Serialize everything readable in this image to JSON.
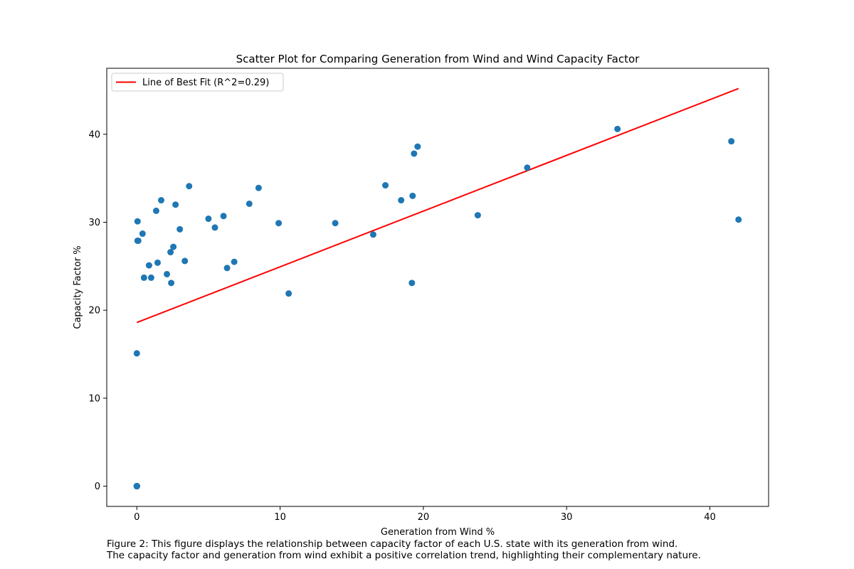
{
  "chart_data": {
    "type": "scatter",
    "title": "Scatter Plot for Comparing Generation from Wind and Wind Capacity Factor",
    "xlabel": "Generation from Wind %",
    "ylabel": "Capacity Factor %",
    "xlim": [
      -2.1,
      44.1
    ],
    "ylim": [
      -2.3,
      47.5
    ],
    "xticks": [
      0,
      10,
      20,
      30,
      40
    ],
    "yticks": [
      0,
      10,
      20,
      30,
      40
    ],
    "grid": false,
    "legend_placement": "upper-left",
    "points": {
      "color": "#1f77b4",
      "x": [
        0,
        0,
        0,
        0,
        0,
        0,
        0,
        0,
        0,
        0,
        0.05,
        0.05,
        0.1,
        0.4,
        0.5,
        0.85,
        1.0,
        1.35,
        1.45,
        1.7,
        2.1,
        2.35,
        2.4,
        2.55,
        2.7,
        3.0,
        3.35,
        3.65,
        5.0,
        5.45,
        6.05,
        6.3,
        6.8,
        7.85,
        8.5,
        9.9,
        10.6,
        13.85,
        16.5,
        17.35,
        18.45,
        19.2,
        19.25,
        19.35,
        19.6,
        23.8,
        27.25,
        33.55,
        41.5,
        42.0
      ],
      "y": [
        0,
        0,
        0,
        0,
        0,
        0,
        0,
        0,
        0,
        15.1,
        27.9,
        30.1,
        27.9,
        28.7,
        23.7,
        25.1,
        23.7,
        31.3,
        25.4,
        32.5,
        24.1,
        26.6,
        23.1,
        27.2,
        32.0,
        29.2,
        25.6,
        34.1,
        30.4,
        29.4,
        30.7,
        24.8,
        25.5,
        32.1,
        33.9,
        29.9,
        21.9,
        29.9,
        28.6,
        34.2,
        32.5,
        23.1,
        33.0,
        37.8,
        38.6,
        30.8,
        36.2,
        40.6,
        39.2,
        30.3
      ]
    },
    "series": [
      {
        "name": "Line of Best Fit (R^2=0.29)",
        "color": "#ff0000",
        "x": [
          0,
          42.0
        ],
        "y": [
          18.6,
          45.2
        ]
      }
    ],
    "caption": [
      "Figure 2: This figure displays the relationship between capacity factor of each U.S. state with its generation from wind.",
      "The capacity factor and generation from wind exhibit a positive correlation trend, highlighting their complementary nature."
    ]
  }
}
